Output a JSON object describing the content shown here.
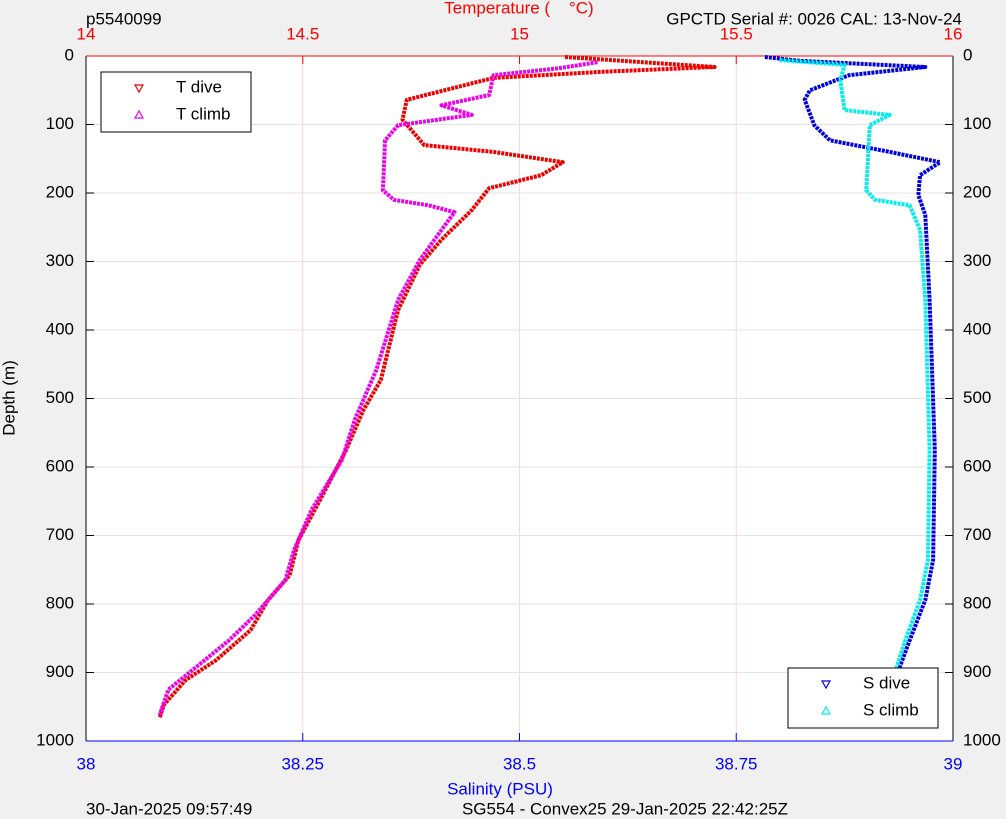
{
  "chart_data": {
    "type": "scatter",
    "title": "p5540099",
    "subtitle": "GPCTD Serial #: 0026 CAL: 13-Nov-24",
    "xlabel": "Salinity (PSU)",
    "x2label": "Temperature (    °C)",
    "ylabel": "Depth (m)",
    "footer_left": "30-Jan-2025 09:57:49",
    "footer_center": "SG554 - Convex25 29-Jan-2025 22:42:25Z",
    "xlim": [
      38,
      39
    ],
    "xticks": [
      38,
      38.25,
      38.5,
      38.75,
      39
    ],
    "xcolor": "#0000ff",
    "x2lim": [
      14,
      16
    ],
    "x2ticks": [
      14,
      14.5,
      15,
      15.5,
      16
    ],
    "x2color": "#ff0000",
    "ylim": [
      0,
      1000
    ],
    "yticks": [
      0,
      100,
      200,
      300,
      400,
      500,
      600,
      700,
      800,
      900,
      1000
    ],
    "y_reversed": true,
    "grid": true,
    "series": [
      {
        "name": "T dive",
        "color": "#ee0000",
        "axis": "x2",
        "marker": "v",
        "legend": "upper left",
        "x": [
          15.105,
          15.45,
          15.19,
          14.94,
          14.74,
          14.73,
          14.76,
          14.78,
          14.94,
          15.1,
          15.05,
          14.93,
          14.89,
          14.82,
          14.77,
          14.72,
          14.68,
          14.64,
          14.6,
          14.54,
          14.49,
          14.47,
          14.42,
          14.38,
          14.3,
          14.23,
          14.18,
          14.17
        ],
        "y": [
          1.5,
          16,
          23,
          32,
          64,
          93,
          115,
          130,
          140,
          155,
          174,
          193,
          225,
          268,
          305,
          371,
          473,
          517,
          575,
          648,
          707,
          758,
          794,
          838,
          882,
          911,
          947,
          966
        ]
      },
      {
        "name": "T climb",
        "color": "#ee00ee",
        "axis": "x2",
        "marker": "^",
        "legend": "upper left",
        "x": [
          15.18,
          15.09,
          14.94,
          14.93,
          14.82,
          14.89,
          14.72,
          14.69,
          14.685,
          14.71,
          14.79,
          14.85,
          14.82,
          14.77,
          14.72,
          14.67,
          14.62,
          14.59,
          14.52,
          14.48,
          14.46,
          14.39,
          14.33,
          14.26,
          14.19,
          14.17
        ],
        "y": [
          9,
          18,
          28,
          57,
          72,
          86,
          101,
          123,
          196,
          210,
          218,
          228,
          254,
          298,
          356,
          458,
          531,
          590,
          663,
          721,
          765,
          816,
          853,
          889,
          925,
          962
        ]
      },
      {
        "name": "S dive",
        "color": "#0000dd",
        "marker": "v",
        "legend": "lower right",
        "x": [
          38.783,
          38.823,
          38.968,
          38.88,
          38.835,
          38.829,
          38.84,
          38.858,
          38.927,
          38.985,
          38.962,
          38.96,
          38.968,
          38.973,
          38.979,
          38.977,
          38.968,
          38.95,
          38.933,
          38.922
        ],
        "y": [
          1.5,
          7,
          16,
          28,
          50,
          64,
          101,
          123,
          140,
          155,
          174,
          203,
          232,
          356,
          575,
          736,
          794,
          853,
          911,
          962
        ]
      },
      {
        "name": "S climb",
        "color": "#00eeee",
        "marker": "^",
        "legend": "lower right",
        "x": [
          38.8,
          38.875,
          38.87,
          38.875,
          38.927,
          38.904,
          38.9,
          38.91,
          38.95,
          38.962,
          38.968,
          38.973,
          38.971,
          38.962,
          38.945,
          38.93,
          38.922
        ],
        "y": [
          6,
          13,
          35,
          79,
          86,
          101,
          196,
          210,
          218,
          254,
          356,
          575,
          736,
          794,
          853,
          911,
          966
        ]
      }
    ]
  }
}
